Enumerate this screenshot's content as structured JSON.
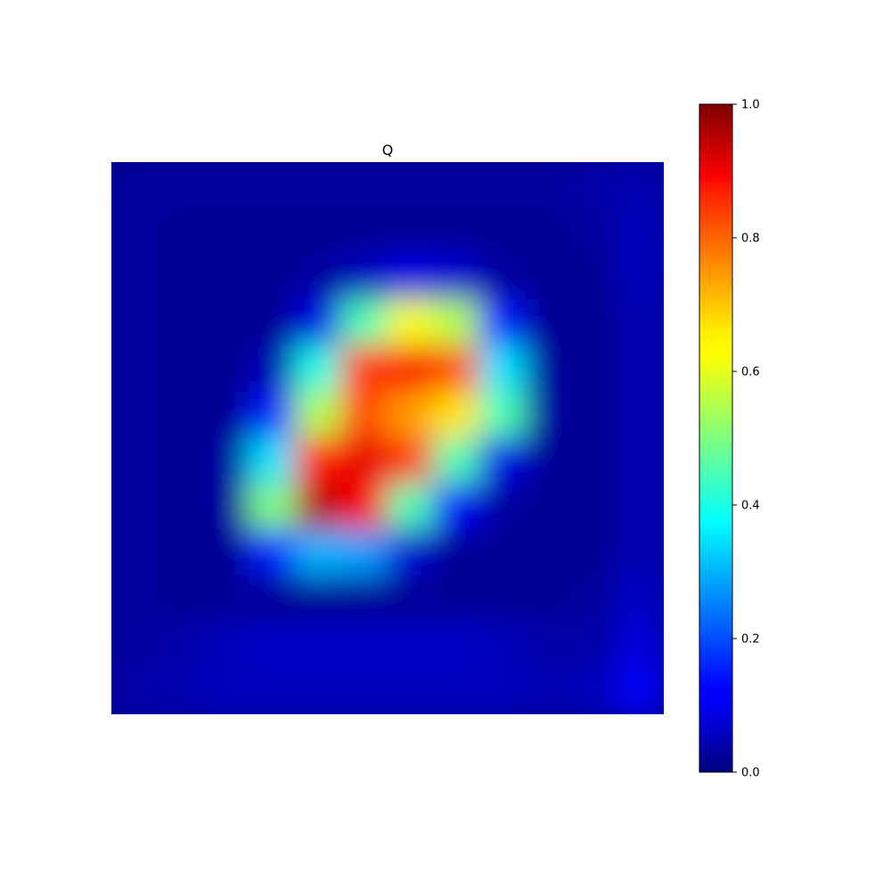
{
  "chart_data": {
    "type": "heatmap",
    "title": "Q",
    "xlabel": "",
    "ylabel": "",
    "axes_visible": false,
    "grid": false,
    "colormap": "jet",
    "colorbar": {
      "vmin": 0.0,
      "vmax": 1.0,
      "ticks": [
        0.0,
        0.2,
        0.4,
        0.6,
        0.8,
        1.0
      ],
      "tick_labels": [
        "0.0",
        "0.2",
        "0.4",
        "0.6",
        "0.8",
        "1.0"
      ],
      "placement": "right"
    },
    "grid_size": [
      12,
      12
    ],
    "values": [
      [
        0.03,
        0.03,
        0.03,
        0.03,
        0.03,
        0.03,
        0.03,
        0.03,
        0.03,
        0.03,
        0.04,
        0.05
      ],
      [
        0.03,
        0.02,
        0.02,
        0.02,
        0.02,
        0.02,
        0.02,
        0.02,
        0.02,
        0.02,
        0.03,
        0.06
      ],
      [
        0.03,
        0.02,
        0.02,
        0.02,
        0.03,
        0.06,
        0.1,
        0.08,
        0.03,
        0.02,
        0.02,
        0.06
      ],
      [
        0.03,
        0.02,
        0.02,
        0.02,
        0.1,
        0.45,
        0.62,
        0.55,
        0.15,
        0.02,
        0.02,
        0.05
      ],
      [
        0.03,
        0.02,
        0.02,
        0.05,
        0.4,
        0.82,
        0.88,
        0.8,
        0.35,
        0.03,
        0.02,
        0.05
      ],
      [
        0.03,
        0.02,
        0.02,
        0.15,
        0.55,
        0.8,
        0.72,
        0.65,
        0.45,
        0.03,
        0.02,
        0.05
      ],
      [
        0.03,
        0.02,
        0.03,
        0.35,
        0.85,
        0.9,
        0.82,
        0.45,
        0.1,
        0.02,
        0.02,
        0.05
      ],
      [
        0.03,
        0.02,
        0.03,
        0.5,
        0.95,
        0.88,
        0.45,
        0.12,
        0.03,
        0.02,
        0.02,
        0.05
      ],
      [
        0.03,
        0.02,
        0.02,
        0.15,
        0.3,
        0.28,
        0.08,
        0.02,
        0.02,
        0.02,
        0.02,
        0.05
      ],
      [
        0.03,
        0.02,
        0.02,
        0.02,
        0.02,
        0.02,
        0.02,
        0.02,
        0.02,
        0.02,
        0.03,
        0.07
      ],
      [
        0.03,
        0.04,
        0.06,
        0.07,
        0.07,
        0.07,
        0.07,
        0.07,
        0.06,
        0.04,
        0.04,
        0.09
      ],
      [
        0.04,
        0.05,
        0.06,
        0.06,
        0.06,
        0.06,
        0.06,
        0.06,
        0.06,
        0.05,
        0.06,
        0.12
      ]
    ]
  }
}
